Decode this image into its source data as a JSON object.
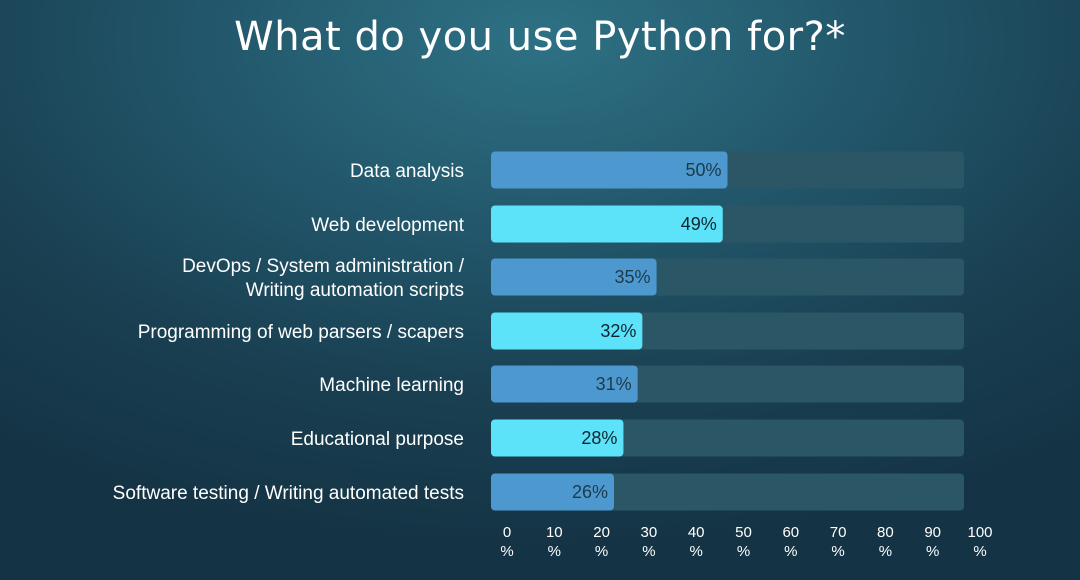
{
  "chart_data": {
    "type": "bar",
    "orientation": "horizontal",
    "title": "What do you use Python for?*",
    "categories": [
      [
        "Data analysis"
      ],
      [
        "Web development"
      ],
      [
        "DevOps / System administration /",
        "Writing automation scripts"
      ],
      [
        "Programming of web parsers / scapers"
      ],
      [
        "Machine learning"
      ],
      [
        "Educational purpose"
      ],
      [
        "Software testing / Writing automated tests"
      ]
    ],
    "values": [
      50,
      49,
      35,
      32,
      31,
      28,
      26
    ],
    "value_labels": [
      "50%",
      "49%",
      "35%",
      "32%",
      "31%",
      "28%",
      "26%"
    ],
    "xlim": [
      0,
      100
    ],
    "x_ticks": [
      [
        "0",
        "%"
      ],
      [
        "10",
        "%"
      ],
      [
        "20",
        "%"
      ],
      [
        "30",
        "%"
      ],
      [
        "40",
        "%"
      ],
      [
        "50",
        "%"
      ],
      [
        "60",
        "%"
      ],
      [
        "70",
        "%"
      ],
      [
        "80",
        "%"
      ],
      [
        "90",
        "%"
      ],
      [
        "100",
        "%"
      ]
    ],
    "grid": false,
    "legend": "none",
    "colors": {
      "bar_dark": "#4d99cf",
      "bar_light": "#5ce3fa",
      "track": "#2b5666",
      "label_on_dark": "#1d3a4a",
      "label_on_light": "#0d2530",
      "text": "#ffffff"
    }
  }
}
